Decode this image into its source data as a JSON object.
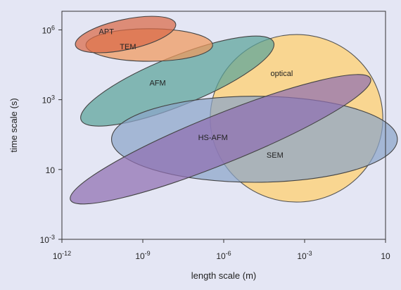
{
  "chart_data": {
    "type": "scatter",
    "xlabel": "length scale (m)",
    "ylabel": "time scale (s)",
    "x_scale": "log10",
    "y_scale": "log10",
    "xlim": [
      -12,
      0
    ],
    "ylim": [
      -3,
      6.8
    ],
    "grid": false,
    "x_ticks": [
      {
        "value": -12,
        "base": "10",
        "exp": "-12"
      },
      {
        "value": -9,
        "base": "10",
        "exp": "-9"
      },
      {
        "value": -6,
        "base": "10",
        "exp": "-6"
      },
      {
        "value": -3,
        "base": "10",
        "exp": "-3"
      },
      {
        "value": 0,
        "base": "10",
        "exp": ""
      }
    ],
    "y_ticks": [
      {
        "value": 6,
        "base": "10",
        "exp": "6"
      },
      {
        "value": 3,
        "base": "10",
        "exp": "3"
      },
      {
        "value": 0,
        "base": "10",
        "exp": ""
      },
      {
        "value": -3,
        "base": "10",
        "exp": "-3"
      }
    ],
    "regions": [
      {
        "name": "optical",
        "cx": -3.3,
        "cy": 2.2,
        "rx": 3.2,
        "ry": 3.6,
        "angle": 0,
        "fill": "#fdd27f",
        "stroke": "#555555",
        "label_color": "#222222",
        "label_x": -3.85,
        "label_y": 4.1
      },
      {
        "name": "AFM",
        "cx": -7.72,
        "cy": 3.8,
        "rx": 3.85,
        "ry": 1.05,
        "angle": -22,
        "fill": "#5aa39a",
        "stroke": "#444444",
        "label_color": "#222222",
        "label_x": -8.45,
        "label_y": 3.7
      },
      {
        "name": "SEM",
        "cx": -4.86,
        "cy": 1.3,
        "rx": 5.3,
        "ry": 1.85,
        "angle": 0,
        "fill": "#8aa5c9",
        "stroke": "#444444",
        "label_color": "#3a4f7a",
        "label_x": -4.1,
        "label_y": 0.6
      },
      {
        "name": "HS-AFM",
        "cx": -6.12,
        "cy": 1.3,
        "rx": 6.0,
        "ry": 1.05,
        "angle": -22,
        "fill": "#8f6fb2",
        "stroke": "#444444",
        "label_color": "#2a2a4a",
        "label_x": -6.4,
        "label_y": 1.35
      },
      {
        "name": "TEM",
        "cx": -8.76,
        "cy": 5.35,
        "rx": 2.35,
        "ry": 0.7,
        "angle": 0,
        "fill": "#f0985c",
        "stroke": "#444444",
        "label_color": "#222222",
        "label_x": -9.55,
        "label_y": 5.25
      },
      {
        "name": "APT",
        "cx": -9.64,
        "cy": 5.8,
        "rx": 1.9,
        "ry": 0.65,
        "angle": -12,
        "fill": "#d96a46",
        "stroke": "#444444",
        "label_color": "#222222",
        "label_x": -10.35,
        "label_y": 5.9
      }
    ]
  }
}
